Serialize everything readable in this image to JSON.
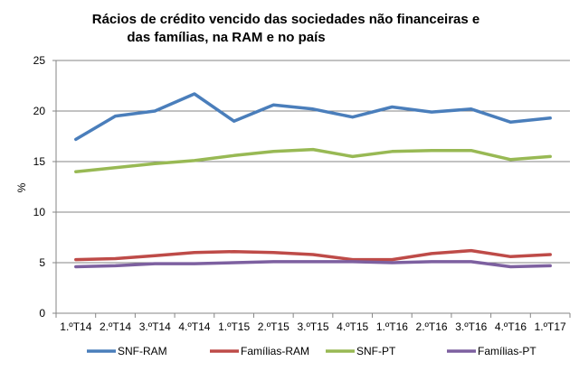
{
  "chart_data": {
    "type": "line",
    "title_line1": "Rácios de crédito vencido das sociedades não financeiras e",
    "title_line2": "das famílias, na RAM e no país",
    "xlabel": "",
    "ylabel": "%",
    "ylim": [
      0,
      25
    ],
    "yticks": [
      "0",
      "5",
      "10",
      "15",
      "20",
      "25"
    ],
    "grid": true,
    "legend_position": "bottom",
    "categories": [
      "1.ºT14",
      "2.ºT14",
      "3.ºT14",
      "4.ºT14",
      "1.ºT15",
      "2.ºT15",
      "3.ºT15",
      "4.ºT15",
      "1.ºT16",
      "2.ºT16",
      "3.ºT16",
      "4.ºT16",
      "1.ºT17"
    ],
    "series": [
      {
        "name": "SNF-RAM",
        "color": "#4a7ebb",
        "values": [
          17.2,
          19.5,
          20.0,
          21.7,
          19.0,
          20.6,
          20.2,
          19.4,
          20.4,
          19.9,
          20.2,
          18.9,
          19.3
        ]
      },
      {
        "name": "Famílias-RAM",
        "color": "#be4b48",
        "values": [
          5.3,
          5.4,
          5.7,
          6.0,
          6.1,
          6.0,
          5.8,
          5.3,
          5.3,
          5.9,
          6.2,
          5.6,
          5.8
        ]
      },
      {
        "name": "SNF-PT",
        "color": "#98b954",
        "values": [
          14.0,
          14.4,
          14.8,
          15.1,
          15.6,
          16.0,
          16.2,
          15.5,
          16.0,
          16.1,
          16.1,
          15.2,
          15.5
        ]
      },
      {
        "name": "Famílias-PT",
        "color": "#7d60a0",
        "values": [
          4.6,
          4.7,
          4.9,
          4.9,
          5.0,
          5.1,
          5.1,
          5.1,
          5.0,
          5.1,
          5.1,
          4.6,
          4.7
        ]
      }
    ]
  }
}
